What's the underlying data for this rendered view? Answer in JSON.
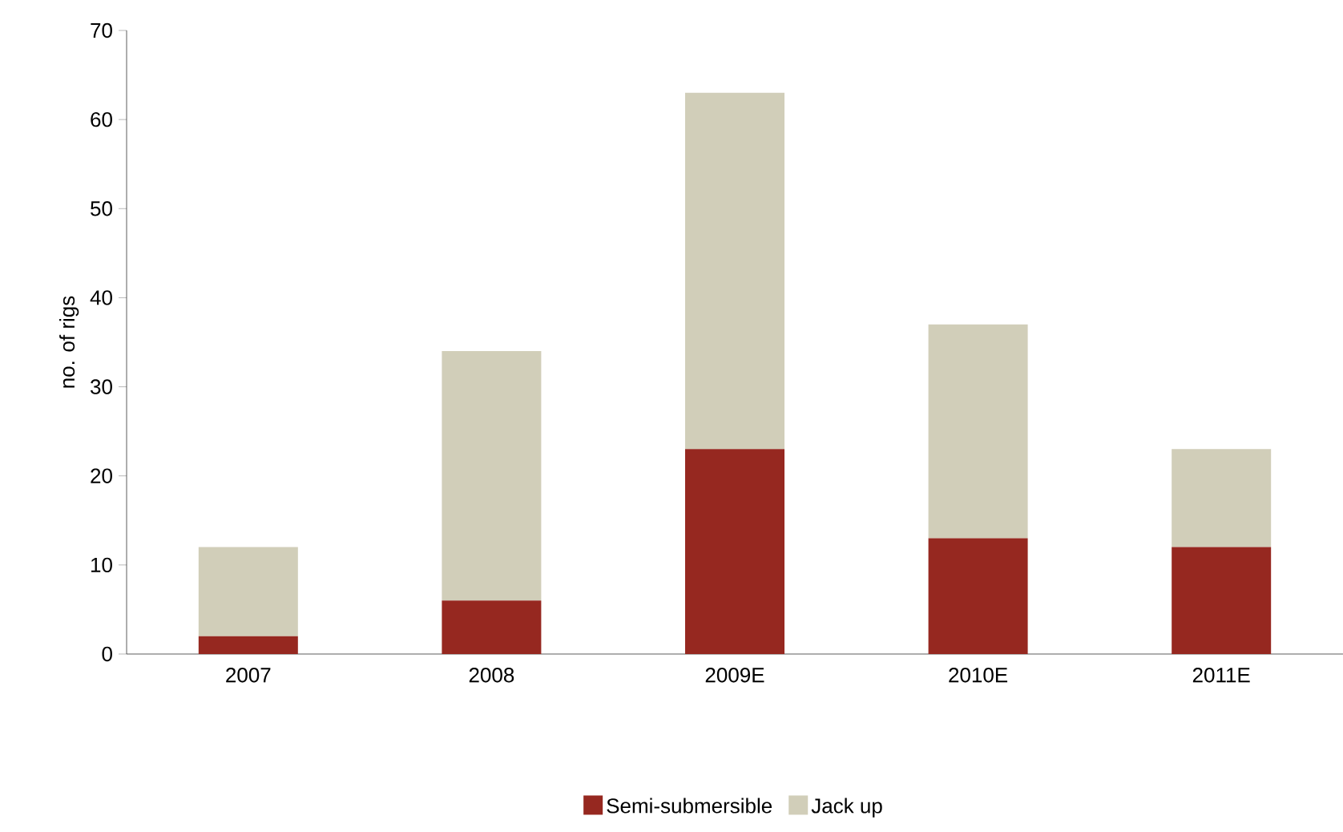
{
  "chart_data": {
    "type": "bar",
    "stacked": true,
    "ylabel": "no. of rigs",
    "categories": [
      "2007",
      "2008",
      "2009E",
      "2010E",
      "2011E"
    ],
    "series": [
      {
        "name": "Semi-submersible",
        "color": "#962820",
        "values": [
          2,
          6,
          23,
          13,
          12
        ]
      },
      {
        "name": "Jack up",
        "color": "#d1ceb9",
        "values": [
          10,
          28,
          40,
          24,
          11
        ]
      }
    ],
    "ylim": [
      0,
      70
    ],
    "yticks": [
      0,
      10,
      20,
      30,
      40,
      50,
      60,
      70
    ],
    "grid": false,
    "legend": "bottom"
  }
}
